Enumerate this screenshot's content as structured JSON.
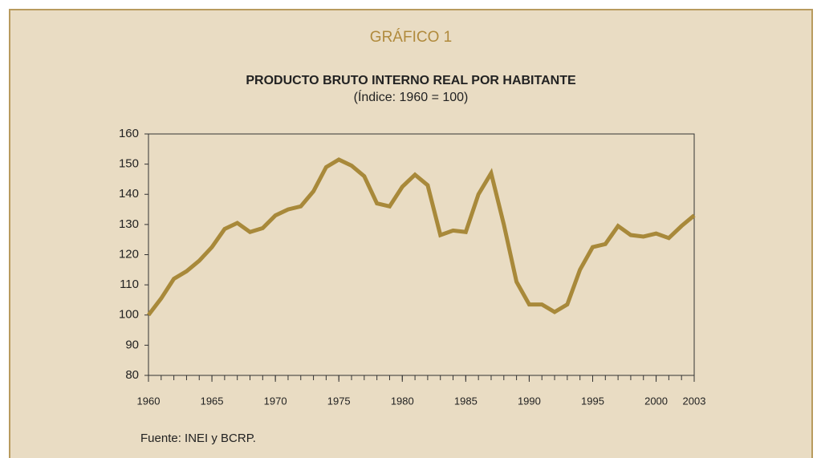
{
  "chart_data": {
    "type": "line",
    "title": "GRÁFICO 1",
    "subtitle": "PRODUCTO BRUTO INTERNO REAL POR HABITANTE",
    "unit_label": "(Índice: 1960 = 100)",
    "source": "Fuente: INEI y BCRP.",
    "x": [
      1960,
      1961,
      1962,
      1963,
      1964,
      1965,
      1966,
      1967,
      1968,
      1969,
      1970,
      1971,
      1972,
      1973,
      1974,
      1975,
      1976,
      1977,
      1978,
      1979,
      1980,
      1981,
      1982,
      1983,
      1984,
      1985,
      1986,
      1987,
      1988,
      1989,
      1990,
      1991,
      1992,
      1993,
      1994,
      1995,
      1996,
      1997,
      1998,
      1999,
      2000,
      2001,
      2002,
      2003
    ],
    "series": [
      {
        "name": "PBI real por habitante",
        "color": "#a8893a",
        "values": [
          100,
          105.5,
          112,
          114.5,
          118,
          122.5,
          128.5,
          130.5,
          127.5,
          128.8,
          133,
          135,
          136,
          141,
          149,
          151.5,
          149.5,
          146,
          137,
          136,
          142.5,
          146.5,
          143,
          126.5,
          128,
          127.5,
          140,
          147,
          130,
          111,
          103.5,
          103.5,
          101,
          103.5,
          115,
          122.5,
          123.5,
          129.5,
          126.5,
          126,
          127,
          125.5,
          129.5,
          133
        ]
      }
    ],
    "xlim": [
      1960,
      2003
    ],
    "xticks": [
      1960,
      1965,
      1970,
      1975,
      1980,
      1985,
      1990,
      1995,
      2000,
      2003
    ],
    "ylim": [
      80,
      160
    ],
    "yticks": [
      80,
      90,
      100,
      110,
      120,
      130,
      140,
      150,
      160
    ]
  }
}
